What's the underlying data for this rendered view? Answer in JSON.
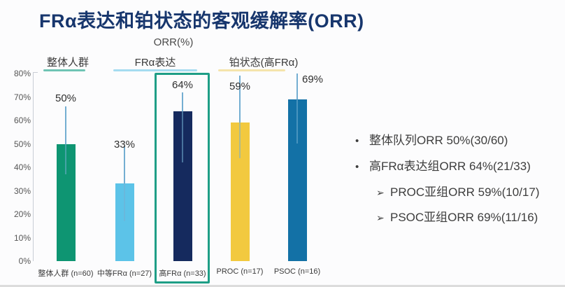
{
  "title": "FRα表达和铂状态的客观缓解率(ORR)",
  "chart_data": {
    "type": "bar",
    "axis_title": "ORR(%)",
    "ylim": [
      0,
      80
    ],
    "ytick_step": 10,
    "ytick_labels": [
      "0%",
      "10%",
      "20%",
      "30%",
      "40%",
      "50%",
      "60%",
      "70%",
      "80%"
    ],
    "grid": false,
    "legend_position": "none",
    "groups": [
      {
        "label": "整体人群",
        "underline_color": "#6fc4b4"
      },
      {
        "label": "FRα表达",
        "underline_color": "#a5dcf0"
      },
      {
        "label": "铂状态(高FRα)",
        "underline_color": "#f5e4ab"
      }
    ],
    "categories": [
      "整体人群 (n=60)",
      "中等FRα (n=27)",
      "高FRα (n=33)",
      "PROC (n=17)",
      "PSOC (n=16)"
    ],
    "values": [
      50,
      33,
      64,
      59,
      69
    ],
    "value_labels": [
      "50%",
      "33%",
      "64%",
      "59%",
      "69%"
    ],
    "bar_colors": [
      "#0e9572",
      "#5cc3e8",
      "#152a5e",
      "#f2c93f",
      "#1371a6"
    ],
    "error_low": [
      37,
      17,
      42,
      44,
      50
    ],
    "error_high": [
      66,
      49,
      72,
      79,
      80
    ],
    "error_color": "#74aed2",
    "highlighted_index": 2,
    "highlight_color": "#1e9e86"
  },
  "notes": {
    "items": [
      {
        "level": 1,
        "marker": "•",
        "text": "整体队列ORR 50%(30/60)"
      },
      {
        "level": 1,
        "marker": "•",
        "text": "高FRα表达组ORR 64%(21/33)"
      },
      {
        "level": 2,
        "marker": "➢",
        "text": "PROC亚组ORR 59%(10/17)"
      },
      {
        "level": 2,
        "marker": "➢",
        "text": "PSOC亚组ORR 69%(11/16)"
      }
    ]
  }
}
